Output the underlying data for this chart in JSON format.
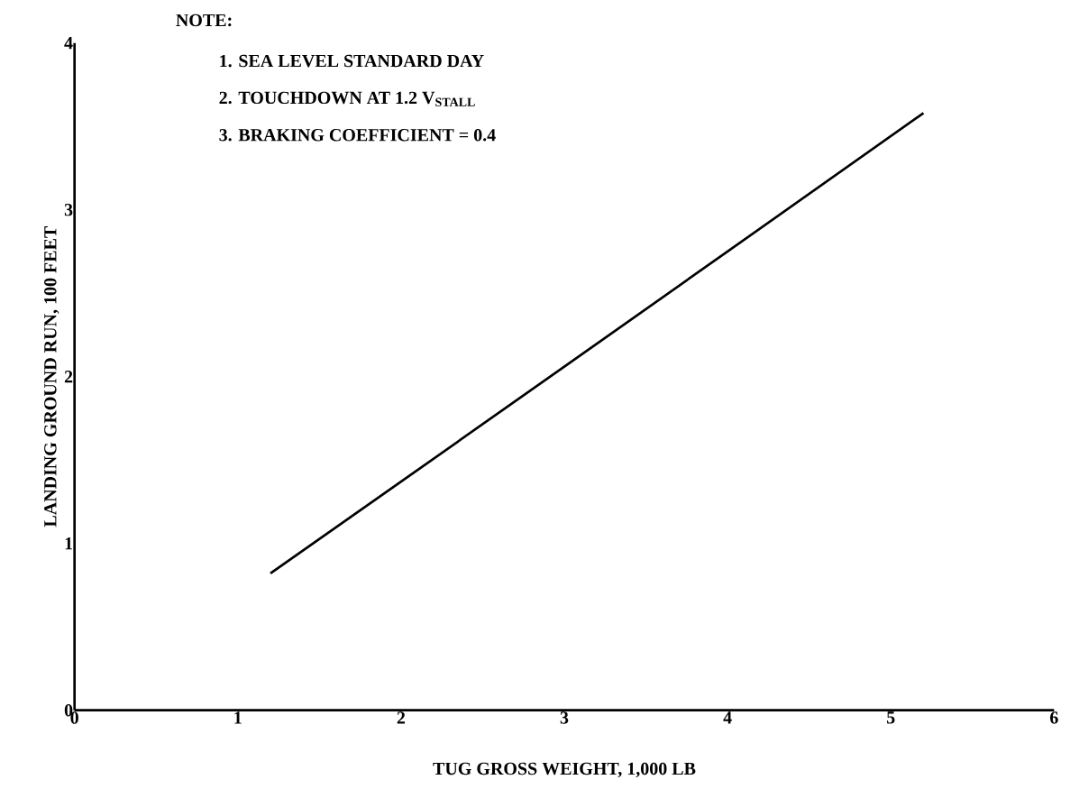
{
  "chart_data": {
    "type": "line",
    "xlabel": "TUG GROSS WEIGHT, 1,000 LB",
    "ylabel": "LANDING GROUND RUN, 100 FEET",
    "annotations": [
      "NOTE:",
      "1.  SEA LEVEL STANDARD DAY",
      "2.  TOUCHDOWN AT 1.2 V$_{STALL}$",
      "3.  BRAKING COEFFICIENT = 0.4"
    ],
    "series": [
      {
        "color": "#000000",
        "x": [
          1.2,
          2,
          3,
          4,
          5.2
        ],
        "values": [
          0.82,
          1.37,
          2.06,
          2.75,
          3.58
        ]
      }
    ],
    "xlim": [
      0,
      6
    ],
    "ylim": [
      0,
      4
    ],
    "xticks": [
      0,
      1,
      2,
      3,
      4,
      5,
      6
    ],
    "yticks": [
      0,
      1,
      2,
      3,
      4
    ],
    "grid": false,
    "marker": "none",
    "line_style": "solid"
  }
}
